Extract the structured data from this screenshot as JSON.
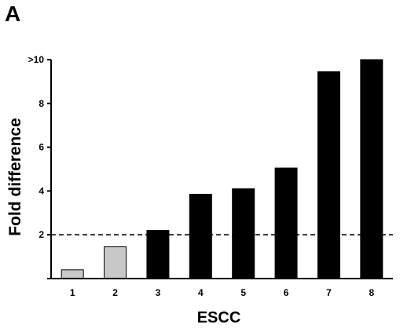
{
  "panel_label": "A",
  "chart_data": {
    "type": "bar",
    "xlabel": "ESCC",
    "ylabel": "Fold difference",
    "categories": [
      "1",
      "2",
      "3",
      "4",
      "5",
      "6",
      "7",
      "8"
    ],
    "values": [
      0.4,
      1.45,
      2.2,
      3.85,
      4.1,
      5.05,
      9.45,
      10
    ],
    "bar_colors": [
      "#c8c8c8",
      "#c8c8c8",
      "#000000",
      "#000000",
      "#000000",
      "#000000",
      "#000000",
      "#000000"
    ],
    "ylim": [
      0,
      10
    ],
    "yticks": [
      {
        "value": 2,
        "label": "2"
      },
      {
        "value": 4,
        "label": "4"
      },
      {
        "value": 6,
        "label": "6"
      },
      {
        "value": 8,
        "label": "8"
      },
      {
        "value": 10,
        "label": ">10"
      }
    ],
    "threshold": 2,
    "threshold_style": "dashed",
    "grid": false,
    "legend": "none"
  }
}
